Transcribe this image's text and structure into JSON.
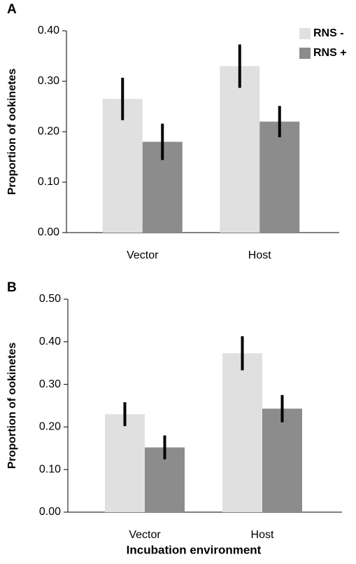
{
  "chart_data": [
    {
      "type": "bar",
      "panel_label": "A",
      "ylabel": "Proportion of ookinetes",
      "categories": [
        "Vector",
        "Host"
      ],
      "series": [
        {
          "name": "RNS -",
          "color": "#e0e0e0",
          "values": [
            0.265,
            0.33
          ],
          "errors": [
            0.042,
            0.043
          ]
        },
        {
          "name": "RNS +",
          "color": "#8c8c8c",
          "values": [
            0.18,
            0.22
          ],
          "errors": [
            0.036,
            0.031
          ]
        }
      ],
      "ylim": [
        0,
        0.4
      ],
      "yticks": [
        {
          "value": 0,
          "label": "0.00"
        },
        {
          "value": 0.1,
          "label": "0.10"
        },
        {
          "value": 0.2,
          "label": "0.20"
        },
        {
          "value": 0.3,
          "label": "0.30"
        },
        {
          "value": 0.4,
          "label": "0.40"
        }
      ],
      "legend": "upper right"
    },
    {
      "type": "bar",
      "panel_label": "B",
      "ylabel": "Proportion of ookinetes",
      "xlabel": "Incubation environment",
      "categories": [
        "Vector",
        "Host"
      ],
      "series": [
        {
          "color": "#e0e0e0",
          "values": [
            0.23,
            0.373
          ],
          "errors": [
            0.028,
            0.04
          ]
        },
        {
          "color": "#8c8c8c",
          "values": [
            0.152,
            0.243
          ],
          "errors": [
            0.028,
            0.032
          ]
        }
      ],
      "ylim": [
        0,
        0.5
      ],
      "yticks": [
        {
          "value": 0,
          "label": "0.00"
        },
        {
          "value": 0.1,
          "label": "0.10"
        },
        {
          "value": 0.2,
          "label": "0.20"
        },
        {
          "value": 0.3,
          "label": "0.30"
        },
        {
          "value": 0.4,
          "label": "0.40"
        },
        {
          "value": 0.5,
          "label": "0.50"
        }
      ]
    }
  ]
}
